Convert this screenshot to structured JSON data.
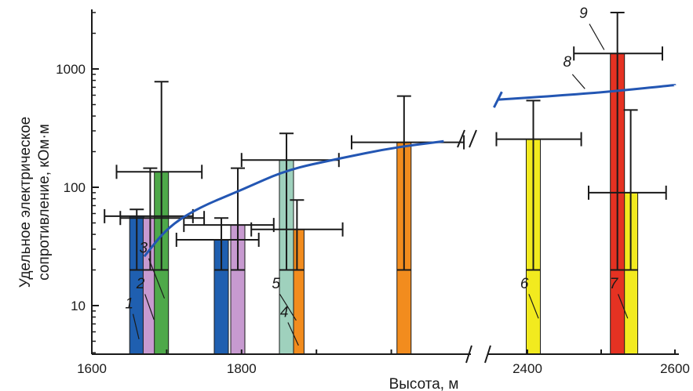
{
  "chart_data": {
    "type": "bar",
    "xlabel": "Высота, м",
    "ylabel": "Удельное электрическое сопротивление, кОм·м",
    "y_scale": "log",
    "ylim": [
      4,
      3000
    ],
    "x_axis_break": true,
    "x_segments": [
      {
        "xlim": [
          1600,
          2100
        ],
        "ticks": [
          1600,
          1800
        ]
      },
      {
        "xlim": [
          2350,
          2600
        ],
        "ticks": [
          2400,
          2600
        ]
      }
    ],
    "yticks": [
      10,
      100,
      1000
    ],
    "x_tick_labels": [
      "1600",
      "1800",
      "2400",
      "2600"
    ],
    "y_tick_labels": [
      "10",
      "100",
      "1000"
    ],
    "series": [
      {
        "name": "1",
        "color": "#1f5fb0",
        "bars": [
          {
            "x": 1660,
            "y": 57,
            "y_err": [
              20,
              65
            ],
            "x_err": [
              1617,
              1735
            ]
          },
          {
            "x": 1773,
            "y": 36,
            "y_err": [
              20,
              55
            ],
            "x_err": [
              1713,
              1823
            ]
          }
        ]
      },
      {
        "name": "2",
        "color": "#c79ad0",
        "bars": [
          {
            "x": 1678,
            "y": 55,
            "y_err": [
              20,
              145
            ],
            "x_err": [
              1638,
              1750
            ]
          },
          {
            "x": 1795,
            "y": 48,
            "y_err": [
              20,
              145
            ],
            "x_err": [
              1723,
              1843
            ]
          }
        ]
      },
      {
        "name": "3",
        "color": "#4ea94a",
        "bars": [
          {
            "x": 1693,
            "y": 135,
            "y_err": [
              20,
              780
            ],
            "x_err": [
              1633,
              1747
            ]
          }
        ]
      },
      {
        "name": "4",
        "color": "#f28c1e",
        "bars": [
          {
            "x": 1874,
            "y": 44,
            "y_err": [
              20,
              78
            ],
            "x_err": [
              1813,
              1935
            ]
          },
          {
            "x": 2017,
            "y": 240,
            "y_err": [
              20,
              590
            ],
            "x_err": [
              1947,
              2097
            ]
          }
        ]
      },
      {
        "name": "5",
        "color": "#9fd1bd",
        "bars": [
          {
            "x": 1860,
            "y": 170,
            "y_err": [
              20,
              285
            ],
            "x_err": [
              1800,
              1930
            ]
          }
        ]
      },
      {
        "name": "6",
        "color": "#f2ea1f",
        "bars": [
          {
            "x": 2408,
            "y": 255,
            "y_err": [
              20,
              540
            ],
            "x_err": [
              2358,
              2473
            ]
          }
        ]
      },
      {
        "name": "7",
        "color": "#f2ea1f",
        "bars": [
          {
            "x": 2540,
            "y": 90,
            "y_err": [
              20,
              450
            ],
            "x_err": [
              2483,
              2588
            ]
          }
        ]
      },
      {
        "name": "9",
        "color": "#e53222",
        "bars": [
          {
            "x": 2522,
            "y": 1350,
            "y_err": [
              20,
              3000
            ],
            "x_err": [
              2463,
              2583
            ]
          }
        ]
      }
    ],
    "curve": {
      "name": "8",
      "color": "#2356b3",
      "segments": [
        {
          "points": [
            [
              1670,
              26
            ],
            [
              1700,
              45
            ],
            [
              1740,
              66
            ],
            [
              1800,
              95
            ],
            [
              1860,
              140
            ],
            [
              1930,
              175
            ],
            [
              2000,
              215
            ],
            [
              2070,
              245
            ]
          ]
        },
        {
          "points": [
            [
              2360,
              550
            ],
            [
              2450,
              600
            ],
            [
              2520,
              650
            ],
            [
              2600,
              730
            ]
          ]
        }
      ]
    },
    "annotations": [
      {
        "text": "1",
        "x": 1650,
        "y": 9.5
      },
      {
        "text": "2",
        "x": 1665,
        "y": 14
      },
      {
        "text": "3",
        "x": 1669,
        "y": 28
      },
      {
        "text": "4",
        "x": 1857,
        "y": 8
      },
      {
        "text": "5",
        "x": 1846,
        "y": 14
      },
      {
        "text": "6",
        "x": 2396,
        "y": 14
      },
      {
        "text": "7",
        "x": 2517,
        "y": 14
      },
      {
        "text": "8",
        "x": 2454,
        "y": 1050
      },
      {
        "text": "9",
        "x": 2476,
        "y": 2700
      }
    ]
  }
}
